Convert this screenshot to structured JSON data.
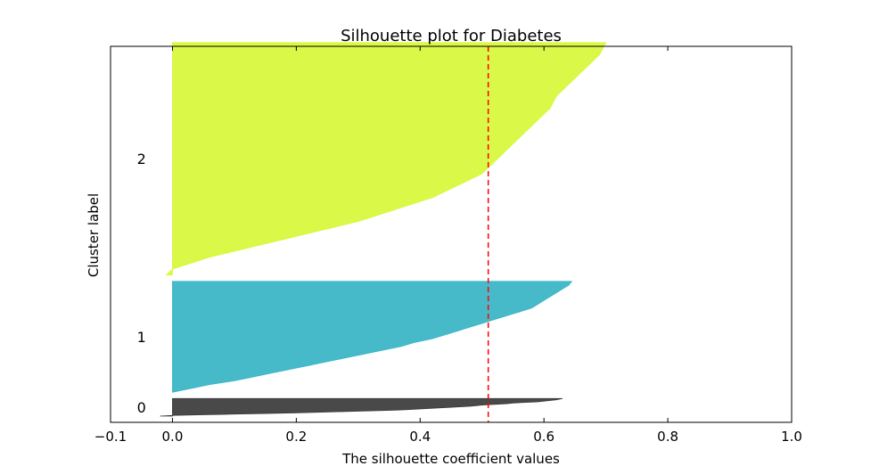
{
  "chart_data": {
    "type": "area",
    "title": "Silhouette plot for Diabetes",
    "xlabel": "The silhouette coefficient values",
    "ylabel": "Cluster label",
    "xlim": [
      -0.1,
      1.0
    ],
    "ylim": [
      0,
      600
    ],
    "xticks": [
      -0.1,
      0.0,
      0.2,
      0.4,
      0.6,
      0.8,
      1.0
    ],
    "xtick_labels": [
      "−0.1",
      "0.0",
      "0.2",
      "0.4",
      "0.6",
      "0.8",
      "1.0"
    ],
    "yticks": [],
    "grid": false,
    "legend": "none",
    "average_silhouette": 0.51,
    "average_line_color": "#ff0000",
    "clusters": [
      {
        "label": "0",
        "color": "#3a3a3a",
        "y_lower": 10,
        "size": 28,
        "silhouette_sorted_values": [
          -0.02,
          0.0,
          0.05,
          0.1,
          0.15,
          0.2,
          0.24,
          0.28,
          0.32,
          0.36,
          0.38,
          0.4,
          0.42,
          0.44,
          0.46,
          0.48,
          0.49,
          0.5,
          0.52,
          0.54,
          0.55,
          0.57,
          0.59,
          0.6,
          0.61,
          0.62,
          0.625,
          0.63
        ]
      },
      {
        "label": "1",
        "color": "#37b4c6",
        "y_lower": 48,
        "size": 177,
        "silhouette_sorted_values": [
          0.0,
          0.03,
          0.06,
          0.1,
          0.13,
          0.16,
          0.19,
          0.22,
          0.25,
          0.28,
          0.31,
          0.34,
          0.37,
          0.39,
          0.42,
          0.44,
          0.46,
          0.48,
          0.5,
          0.52,
          0.54,
          0.56,
          0.58,
          0.59,
          0.6,
          0.61,
          0.62,
          0.63,
          0.64,
          0.645
        ]
      },
      {
        "label": "2",
        "color": "#d7f737",
        "y_lower": 235,
        "size": 371,
        "silhouette_sorted_values": [
          -0.01,
          0.0,
          0.03,
          0.06,
          0.1,
          0.14,
          0.18,
          0.22,
          0.26,
          0.3,
          0.33,
          0.36,
          0.39,
          0.42,
          0.44,
          0.46,
          0.48,
          0.5,
          0.51,
          0.52,
          0.53,
          0.54,
          0.55,
          0.56,
          0.57,
          0.58,
          0.59,
          0.6,
          0.61,
          0.615,
          0.62,
          0.63,
          0.64,
          0.65,
          0.66,
          0.67,
          0.68,
          0.69,
          0.695,
          0.7
        ]
      }
    ]
  }
}
